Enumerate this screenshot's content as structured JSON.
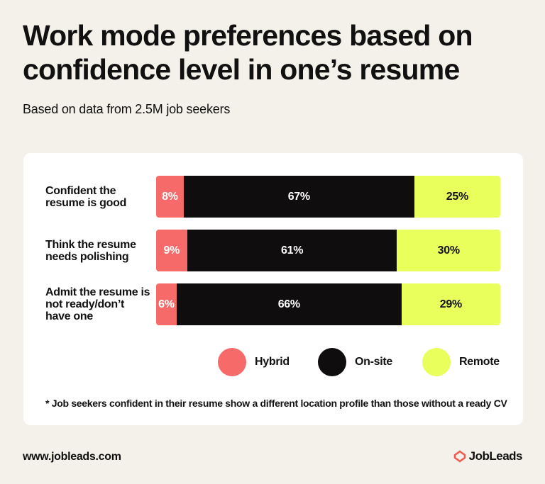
{
  "header": {
    "title": "Work mode preferences based on confidence level in one’s resume",
    "subtitle": "Based on data from 2.5M job seekers"
  },
  "colors": {
    "hybrid": "#f76a6a",
    "onsite": "#0f0d0d",
    "remote": "#e9ff5c",
    "brand": "#f05a4f"
  },
  "chart_data": {
    "type": "bar",
    "orientation": "horizontal",
    "stacked": true,
    "categories": [
      "Confident the resume is good",
      "Think the resume needs polishing",
      "Admit the resume is not ready/don’t have one"
    ],
    "series": [
      {
        "name": "Hybrid",
        "values": [
          8,
          9,
          6
        ],
        "labels": [
          "8%",
          "9%",
          "6%"
        ]
      },
      {
        "name": "On-site",
        "values": [
          67,
          61,
          66
        ],
        "labels": [
          "67%",
          "61%",
          "66%"
        ]
      },
      {
        "name": "Remote",
        "values": [
          25,
          30,
          29
        ],
        "labels": [
          "25%",
          "30%",
          "29%"
        ]
      }
    ],
    "legend": [
      "Hybrid",
      "On-site",
      "Remote"
    ]
  },
  "footnote": "*  Job seekers confident in their resume show a different location profile than those without a ready CV",
  "footer": {
    "url": "www.jobleads.com",
    "brand": "JobLeads",
    "brand_logo_icon": "jobleads-logo-icon"
  }
}
